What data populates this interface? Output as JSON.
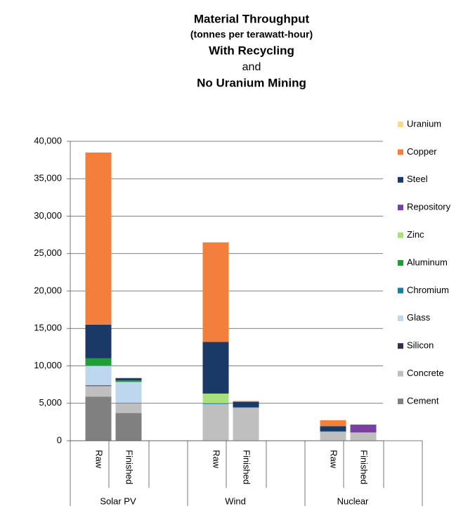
{
  "chart_data": {
    "type": "stacked_bar",
    "title_lines": [
      {
        "text": "Material Throughput",
        "bold": true,
        "size": 17
      },
      {
        "text": "(tonnes per terawatt-hour)",
        "bold": true,
        "size": 14
      },
      {
        "text": "With Recycling",
        "bold": true,
        "size": 17
      },
      {
        "text": "and",
        "bold": false,
        "size": 16
      },
      {
        "text": "No Uranium Mining",
        "bold": true,
        "size": 17
      }
    ],
    "categories": [
      "Raw",
      "Finished",
      "Raw",
      "Finished",
      "Raw",
      "Finished"
    ],
    "category_groups": [
      "Solar PV",
      "Wind",
      "Nuclear"
    ],
    "series": [
      {
        "name": "Cement",
        "color": "#808080",
        "values": [
          5900,
          3700,
          0,
          0,
          0,
          0
        ]
      },
      {
        "name": "Concrete",
        "color": "#bfbfbf",
        "values": [
          1400,
          1300,
          4900,
          4400,
          1200,
          1100
        ]
      },
      {
        "name": "Silicon",
        "color": "#3b2b4d",
        "values": [
          100,
          50,
          0,
          0,
          0,
          0
        ]
      },
      {
        "name": "Glass",
        "color": "#bcd7ee",
        "values": [
          2600,
          2800,
          0,
          0,
          0,
          0
        ]
      },
      {
        "name": "Chromium",
        "color": "#1481a0",
        "values": [
          0,
          0,
          100,
          100,
          50,
          0
        ]
      },
      {
        "name": "Aluminum",
        "color": "#1d9e36",
        "values": [
          1000,
          200,
          0,
          0,
          0,
          0
        ]
      },
      {
        "name": "Zinc",
        "color": "#a8e07e",
        "values": [
          0,
          0,
          1300,
          0,
          0,
          0
        ]
      },
      {
        "name": "Repository",
        "color": "#7b3fa1",
        "values": [
          0,
          0,
          0,
          0,
          0,
          1000
        ]
      },
      {
        "name": "Steel",
        "color": "#1b3966",
        "values": [
          4500,
          300,
          6900,
          700,
          700,
          50
        ]
      },
      {
        "name": "Copper",
        "color": "#f47e3c",
        "values": [
          23000,
          50,
          13300,
          100,
          800,
          0
        ]
      },
      {
        "name": "Uranium",
        "color": "#fcd98b",
        "values": [
          0,
          0,
          0,
          0,
          20,
          0
        ]
      }
    ],
    "ylim": [
      0,
      40000
    ],
    "yticks": [
      0,
      {
        "value": 5000,
        "label": "5,000"
      },
      {
        "value": 10000,
        "label": "10,000"
      },
      {
        "value": 15000,
        "label": "15,000"
      },
      {
        "value": 20000,
        "label": "20,000"
      },
      {
        "value": 25000,
        "label": "25,000"
      },
      {
        "value": 30000,
        "label": "30,000"
      },
      {
        "value": 35000,
        "label": "35,000"
      },
      {
        "value": 40000,
        "label": "40,000"
      }
    ],
    "grid": true
  }
}
